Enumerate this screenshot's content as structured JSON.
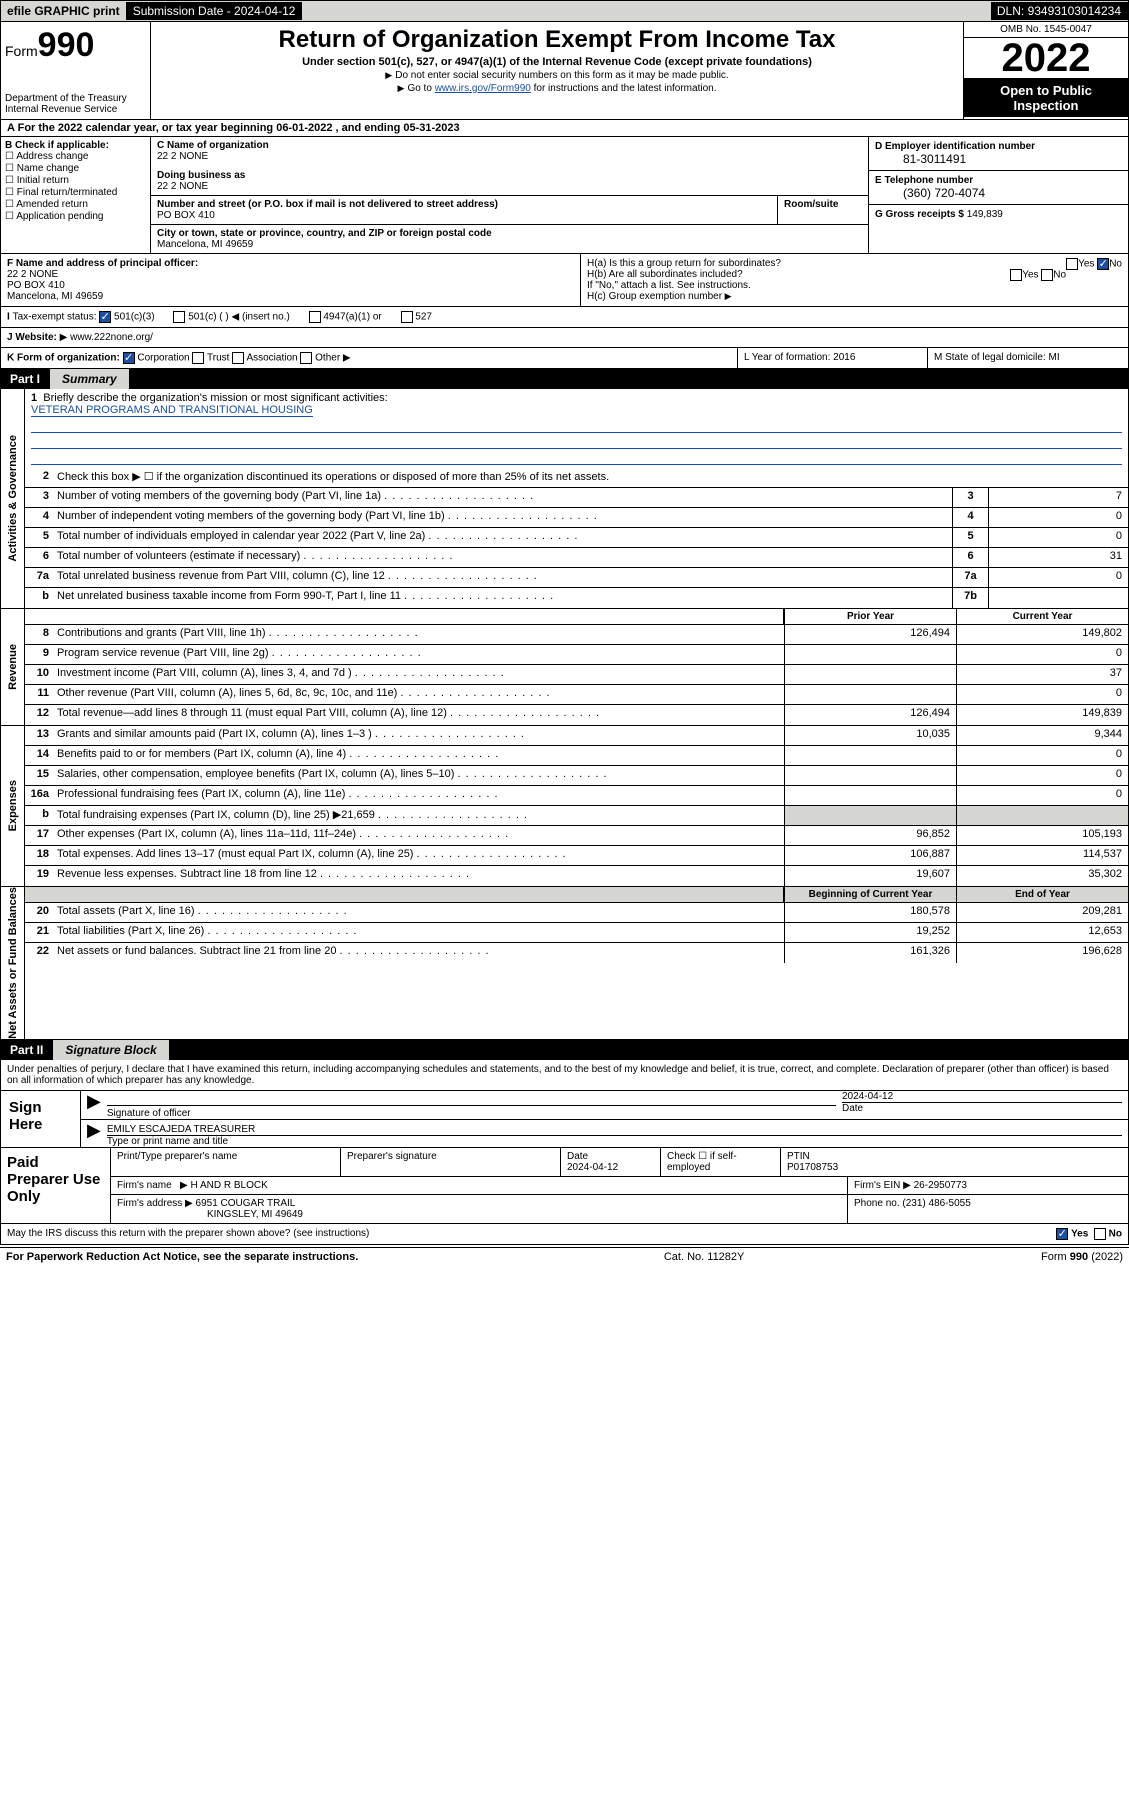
{
  "colors": {
    "accent": "#1c4fa1",
    "grey": "#d6d7d2",
    "black": "#000000",
    "white": "#ffffff"
  },
  "topbar": {
    "efile": "efile GRAPHIC print",
    "sub_label": "Submission Date - 2024-04-12",
    "dln": "DLN: 93493103014234"
  },
  "header": {
    "form_prefix": "Form",
    "form_num": "990",
    "title": "Return of Organization Exempt From Income Tax",
    "sub": "Under section 501(c), 527, or 4947(a)(1) of the Internal Revenue Code (except private foundations)",
    "note1": "Do not enter social security numbers on this form as it may be made public.",
    "note2_pre": "Go to ",
    "note2_link": "www.irs.gov/Form990",
    "note2_post": " for instructions and the latest information.",
    "dept": "Department of the Treasury",
    "irs": "Internal Revenue Service",
    "omb": "OMB No. 1545-0047",
    "year": "2022",
    "open": "Open to Public Inspection"
  },
  "row_a": "For the 2022 calendar year, or tax year beginning 06-01-2022   , and ending 05-31-2023",
  "section_b": {
    "label": "B Check if applicable:",
    "opts": [
      "Address change",
      "Name change",
      "Initial return",
      "Final return/terminated",
      "Amended return",
      "Application pending"
    ],
    "c_label": "C Name of organization",
    "c_name": "22 2 NONE",
    "dba_label": "Doing business as",
    "dba": "22 2 NONE",
    "addr_label": "Number and street (or P.O. box if mail is not delivered to street address)",
    "room_label": "Room/suite",
    "addr": "PO BOX 410",
    "city_label": "City or town, state or province, country, and ZIP or foreign postal code",
    "city": "Mancelona, MI  49659",
    "d_label": "D Employer identification number",
    "d_val": "81-3011491",
    "e_label": "E Telephone number",
    "e_val": "(360) 720-4074",
    "g_label": "G Gross receipts $",
    "g_val": "149,839"
  },
  "section_f": {
    "f_label": "F Name and address of principal officer:",
    "f_name": "22 2 NONE",
    "f_addr1": "PO BOX 410",
    "f_addr2": "Mancelona, MI  49659",
    "ha": "H(a)  Is this a group return for subordinates?",
    "ha_yes": "Yes",
    "ha_no": "No",
    "hb": "H(b)  Are all subordinates included?",
    "hb_yes": "Yes",
    "hb_no": "No",
    "hb_note": "If \"No,\" attach a list. See instructions.",
    "hc": "H(c)  Group exemption number"
  },
  "section_i": {
    "label": "Tax-exempt status:",
    "o1": "501(c)(3)",
    "o2": "501(c) (  ) ◀ (insert no.)",
    "o3": "4947(a)(1) or",
    "o4": "527"
  },
  "section_j": {
    "label": "Website:",
    "val": "www.222none.org/"
  },
  "section_k": {
    "label": "K Form of organization:",
    "opts": [
      "Corporation",
      "Trust",
      "Association",
      "Other"
    ],
    "l": "L Year of formation: 2016",
    "m": "M State of legal domicile: MI"
  },
  "part1": {
    "num": "Part I",
    "title": "Summary"
  },
  "mission": {
    "n": "1",
    "label": "Briefly describe the organization's mission or most significant activities:",
    "text": "VETERAN PROGRAMS AND TRANSITIONAL HOUSING"
  },
  "gov_lines": [
    {
      "n": "2",
      "t": "Check this box ▶ ☐  if the organization discontinued its operations or disposed of more than 25% of its net assets.",
      "nn": "",
      "v": ""
    },
    {
      "n": "3",
      "t": "Number of voting members of the governing body (Part VI, line 1a)",
      "nn": "3",
      "v": "7"
    },
    {
      "n": "4",
      "t": "Number of independent voting members of the governing body (Part VI, line 1b)",
      "nn": "4",
      "v": "0"
    },
    {
      "n": "5",
      "t": "Total number of individuals employed in calendar year 2022 (Part V, line 2a)",
      "nn": "5",
      "v": "0"
    },
    {
      "n": "6",
      "t": "Total number of volunteers (estimate if necessary)",
      "nn": "6",
      "v": "31"
    },
    {
      "n": "7a",
      "t": "Total unrelated business revenue from Part VIII, column (C), line 12",
      "nn": "7a",
      "v": "0"
    },
    {
      "n": "b",
      "t": "Net unrelated business taxable income from Form 990-T, Part I, line 11",
      "nn": "7b",
      "v": ""
    }
  ],
  "two_col_hdr": {
    "c1": "Prior Year",
    "c2": "Current Year"
  },
  "rev_lines": [
    {
      "n": "8",
      "t": "Contributions and grants (Part VIII, line 1h)",
      "v1": "126,494",
      "v2": "149,802"
    },
    {
      "n": "9",
      "t": "Program service revenue (Part VIII, line 2g)",
      "v1": "",
      "v2": "0"
    },
    {
      "n": "10",
      "t": "Investment income (Part VIII, column (A), lines 3, 4, and 7d )",
      "v1": "",
      "v2": "37"
    },
    {
      "n": "11",
      "t": "Other revenue (Part VIII, column (A), lines 5, 6d, 8c, 9c, 10c, and 11e)",
      "v1": "",
      "v2": "0"
    },
    {
      "n": "12",
      "t": "Total revenue—add lines 8 through 11 (must equal Part VIII, column (A), line 12)",
      "v1": "126,494",
      "v2": "149,839"
    }
  ],
  "exp_lines": [
    {
      "n": "13",
      "t": "Grants and similar amounts paid (Part IX, column (A), lines 1–3 )",
      "v1": "10,035",
      "v2": "9,344"
    },
    {
      "n": "14",
      "t": "Benefits paid to or for members (Part IX, column (A), line 4)",
      "v1": "",
      "v2": "0"
    },
    {
      "n": "15",
      "t": "Salaries, other compensation, employee benefits (Part IX, column (A), lines 5–10)",
      "v1": "",
      "v2": "0"
    },
    {
      "n": "16a",
      "t": "Professional fundraising fees (Part IX, column (A), line 11e)",
      "v1": "",
      "v2": "0"
    },
    {
      "n": "b",
      "t": "Total fundraising expenses (Part IX, column (D), line 25) ▶21,659",
      "v1": "__GREY__",
      "v2": "__GREY__"
    },
    {
      "n": "17",
      "t": "Other expenses (Part IX, column (A), lines 11a–11d, 11f–24e)",
      "v1": "96,852",
      "v2": "105,193"
    },
    {
      "n": "18",
      "t": "Total expenses. Add lines 13–17 (must equal Part IX, column (A), line 25)",
      "v1": "106,887",
      "v2": "114,537"
    },
    {
      "n": "19",
      "t": "Revenue less expenses. Subtract line 18 from line 12",
      "v1": "19,607",
      "v2": "35,302"
    }
  ],
  "net_hdr": {
    "c1": "Beginning of Current Year",
    "c2": "End of Year"
  },
  "net_lines": [
    {
      "n": "20",
      "t": "Total assets (Part X, line 16)",
      "v1": "180,578",
      "v2": "209,281"
    },
    {
      "n": "21",
      "t": "Total liabilities (Part X, line 26)",
      "v1": "19,252",
      "v2": "12,653"
    },
    {
      "n": "22",
      "t": "Net assets or fund balances. Subtract line 21 from line 20",
      "v1": "161,326",
      "v2": "196,628"
    }
  ],
  "vlabels": {
    "gov": "Activities & Governance",
    "rev": "Revenue",
    "exp": "Expenses",
    "net": "Net Assets or Fund Balances"
  },
  "part2": {
    "num": "Part II",
    "title": "Signature Block"
  },
  "sig_note": "Under penalties of perjury, I declare that I have examined this return, including accompanying schedules and statements, and to the best of my knowledge and belief, it is true, correct, and complete. Declaration of preparer (other than officer) is based on all information of which preparer has any knowledge.",
  "sign": {
    "here": "Sign Here",
    "sig_of_officer": "Signature of officer",
    "date": "2024-04-12",
    "date_lbl": "Date",
    "name": "EMILY ESCAJEDA  TREASURER",
    "name_lbl": "Type or print name and title"
  },
  "paid": {
    "label": "Paid Preparer Use Only",
    "r1": {
      "c1": "Print/Type preparer's name",
      "c2": "Preparer's signature",
      "c3": "Date",
      "c3v": "2024-04-12",
      "c4": "Check ☐ if self-employed",
      "c5": "PTIN",
      "c5v": "P01708753"
    },
    "r2": {
      "lbl": "Firm's name",
      "val": "H AND R BLOCK",
      "ein_lbl": "Firm's EIN",
      "ein": "26-2950773"
    },
    "r3": {
      "lbl": "Firm's address",
      "val1": "6951 COUGAR TRAIL",
      "val2": "KINGSLEY, MI  49649",
      "ph_lbl": "Phone no.",
      "ph": "(231) 486-5055"
    }
  },
  "may_irs": {
    "t": "May the IRS discuss this return with the preparer shown above? (see instructions)",
    "yes": "Yes",
    "no": "No"
  },
  "footer": {
    "l": "For Paperwork Reduction Act Notice, see the separate instructions.",
    "m": "Cat. No. 11282Y",
    "r": "Form 990 (2022)"
  }
}
